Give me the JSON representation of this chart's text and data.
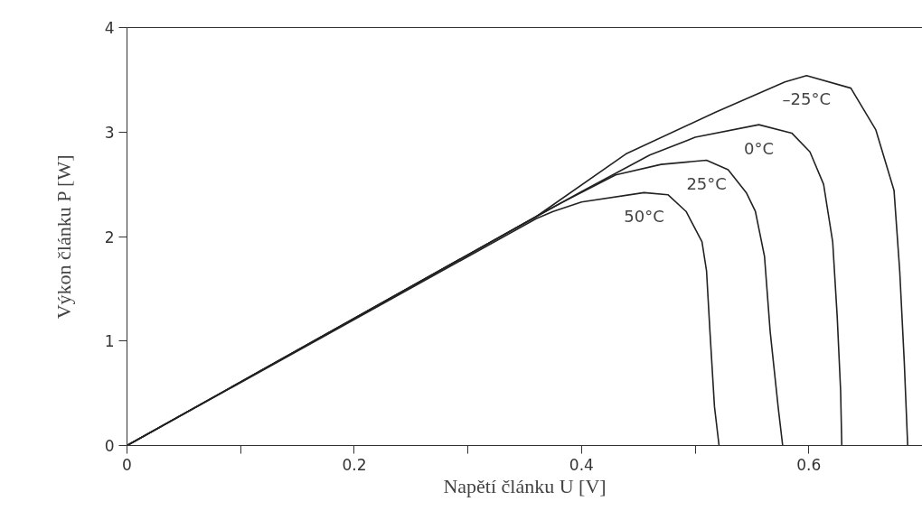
{
  "chart_data": {
    "type": "line",
    "xlabel": "Napětí článku U [V]",
    "ylabel": "Výkon článku P [W]",
    "xlim": [
      0,
      0.7
    ],
    "ylim": [
      0,
      4
    ],
    "xticks": [
      0,
      {
        "value": 0.1,
        "label": null
      },
      0.2,
      {
        "value": 0.3,
        "label": null
      },
      0.4,
      {
        "value": 0.5,
        "label": null
      },
      0.6
    ],
    "yticks": [
      0,
      1,
      2,
      3,
      4
    ],
    "grid": false,
    "marker": "none",
    "line_style": "solid",
    "series": [
      {
        "name": "–25°C",
        "color": "#222222",
        "x": [
          0,
          0.36,
          0.439,
          0.518,
          0.579,
          0.598,
          0.637,
          0.659,
          0.675,
          0.68,
          0.684,
          0.687
        ],
        "values": [
          0,
          2.19,
          2.79,
          3.19,
          3.48,
          3.54,
          3.42,
          3.02,
          2.44,
          1.67,
          0.8,
          0
        ]
      },
      {
        "name": "0°C",
        "color": "#222222",
        "x": [
          0,
          0.36,
          0.4,
          0.46,
          0.5,
          0.556,
          0.585,
          0.601,
          0.613,
          0.621,
          0.625,
          0.628,
          0.629
        ],
        "values": [
          0,
          2.19,
          2.43,
          2.78,
          2.95,
          3.07,
          2.99,
          2.81,
          2.5,
          1.95,
          1.23,
          0.52,
          0
        ]
      },
      {
        "name": "25°C",
        "color": "#222222",
        "x": [
          0,
          0.36,
          0.38,
          0.43,
          0.47,
          0.51,
          0.529,
          0.545,
          0.553,
          0.561,
          0.566,
          0.573,
          0.577
        ],
        "values": [
          0,
          2.19,
          2.31,
          2.59,
          2.69,
          2.73,
          2.64,
          2.42,
          2.24,
          1.81,
          1.09,
          0.37,
          0
        ]
      },
      {
        "name": "50°C",
        "color": "#222222",
        "x": [
          0,
          0.36,
          0.375,
          0.4,
          0.455,
          0.476,
          0.492,
          0.506,
          0.51,
          0.513,
          0.517,
          0.521
        ],
        "values": [
          0,
          2.17,
          2.24,
          2.33,
          2.42,
          2.4,
          2.24,
          1.95,
          1.67,
          1.09,
          0.37,
          0
        ]
      }
    ]
  }
}
